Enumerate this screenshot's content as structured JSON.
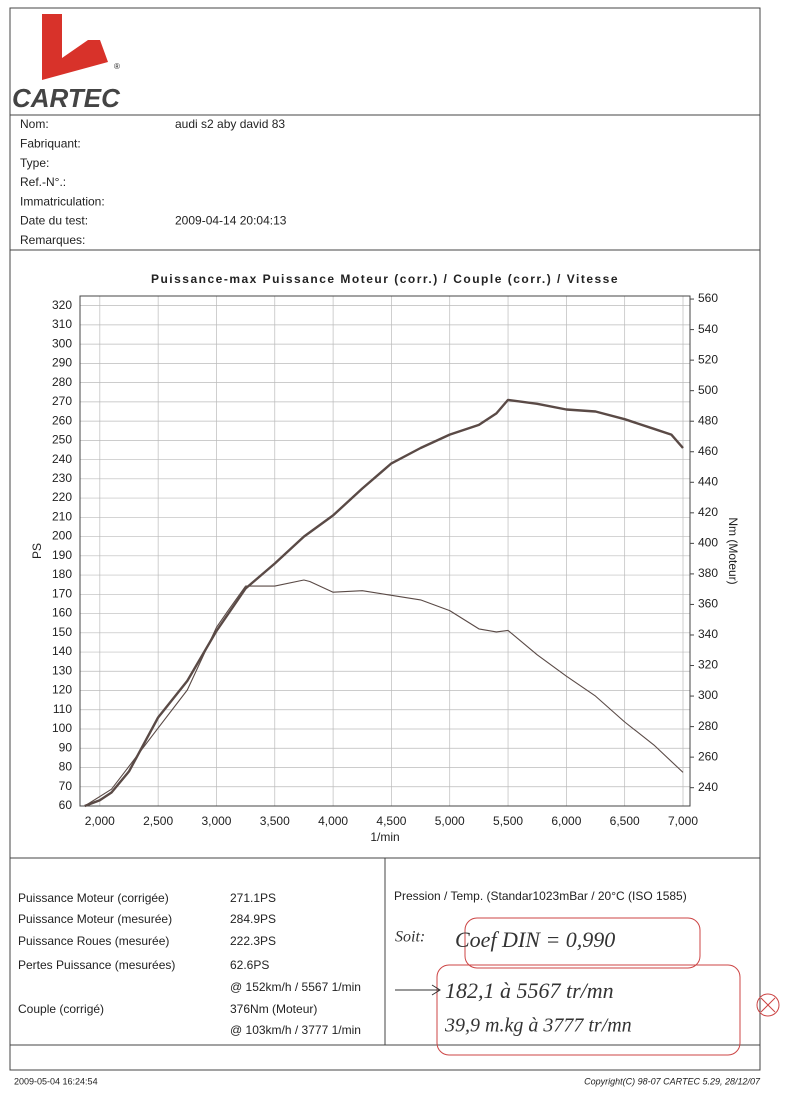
{
  "logo": {
    "text": "CARTEC",
    "mark": "®"
  },
  "info": [
    {
      "label": "Nom:",
      "value": "audi s2 aby david 83"
    },
    {
      "label": "Fabriquant:"
    },
    {
      "label": "Type:"
    },
    {
      "label": "Ref.-N°.:"
    },
    {
      "label": "Immatriculation:"
    },
    {
      "label": "Date du test:",
      "value": "2009-04-14 20:04:13"
    },
    {
      "label": "Remarques:"
    }
  ],
  "chart_data": {
    "type": "line",
    "title": "Puissance-max Puissance Moteur (corr.) / Couple (corr.) / Vitesse",
    "xlabel": "1/min",
    "ylabel": "PS",
    "y2label": "Nm (Moteur)",
    "xlim": [
      1830,
      7060
    ],
    "ylim": [
      60,
      325
    ],
    "y2lim": [
      228,
      562
    ],
    "xticks": [
      {
        "value": 2000,
        "label": "2,000"
      },
      {
        "value": 2500,
        "label": "2,500"
      },
      {
        "value": 3000,
        "label": "3,000"
      },
      {
        "value": 3500,
        "label": "3,500"
      },
      {
        "value": 4000,
        "label": "4,000"
      },
      {
        "value": 4500,
        "label": "4,500"
      },
      {
        "value": 5000,
        "label": "5,000"
      },
      {
        "value": 5500,
        "label": "5,500"
      },
      {
        "value": 6000,
        "label": "6,000"
      },
      {
        "value": 6500,
        "label": "6,500"
      },
      {
        "value": 7000,
        "label": "7,000"
      }
    ],
    "yticks": [
      60,
      70,
      80,
      90,
      100,
      110,
      120,
      130,
      140,
      150,
      160,
      170,
      180,
      190,
      200,
      210,
      220,
      230,
      240,
      250,
      260,
      270,
      280,
      290,
      300,
      310,
      320
    ],
    "y2ticks": [
      240,
      260,
      280,
      300,
      320,
      340,
      360,
      380,
      400,
      420,
      440,
      460,
      480,
      500,
      520,
      540,
      560
    ],
    "grid": true,
    "series": [
      {
        "name": "Puissance Moteur (corr.)",
        "color": "#5a4a46",
        "width": 2.4,
        "x": [
          1870,
          2000,
          2100,
          2250,
          2500,
          2750,
          3000,
          3250,
          3500,
          3750,
          4000,
          4250,
          4500,
          4750,
          5000,
          5250,
          5400,
          5500,
          5750,
          6000,
          6250,
          6500,
          6750,
          6900,
          7000
        ],
        "values": [
          60,
          63,
          67,
          78,
          106,
          125,
          151,
          173,
          186,
          200,
          211,
          225,
          238,
          246,
          253,
          258,
          264,
          271,
          269,
          266,
          265,
          261,
          256,
          253,
          246
        ]
      },
      {
        "name": "Couple (corr.)",
        "color": "#5a4a46",
        "width": 1.1,
        "axis": "y2",
        "x": [
          1870,
          2100,
          2250,
          2500,
          2750,
          3000,
          3100,
          3250,
          3400,
          3500,
          3750,
          3800,
          4000,
          4250,
          4500,
          4750,
          5000,
          5250,
          5400,
          5500,
          5750,
          6000,
          6250,
          6500,
          6750,
          7000
        ],
        "values": [
          228,
          239,
          254,
          279,
          304,
          345,
          356,
          372,
          372,
          372,
          376,
          375,
          368,
          369,
          366,
          363,
          356,
          344,
          342,
          343,
          327,
          313,
          300,
          283,
          268,
          250
        ]
      }
    ]
  },
  "results": {
    "rows": [
      {
        "label": "Puissance Moteur (corrigée)",
        "value": "271.1PS"
      },
      {
        "label": "Puissance Moteur (mesurée)",
        "value": "284.9PS"
      },
      {
        "label": "Puissance Roues (mesurée)",
        "value": "222.3PS"
      },
      {
        "label": "Pertes Puissance (mesurées)",
        "value": "62.6PS"
      },
      {
        "value": "@ 152km/h / 5567 1/min"
      },
      {
        "label": "Couple (corrigé)",
        "value": "376Nm (Moteur)"
      },
      {
        "value": "@ 103km/h / 3777 1/min"
      }
    ],
    "conditions": "Pression / Temp. (Standar1023mBar / 20°C   (ISO 1585)"
  },
  "notes": {
    "prefix": "Soit:",
    "coef": "Coef DIN = 0,990",
    "power": "182,1 à 5567 tr/mn",
    "torque": "39,9 m.kg à 3777 tr/mn"
  },
  "footer": {
    "printed": "2009-05-04 16:24:54",
    "copyright": "Copyright(C) 98-07 CARTEC 5.29, 28/12/07"
  }
}
